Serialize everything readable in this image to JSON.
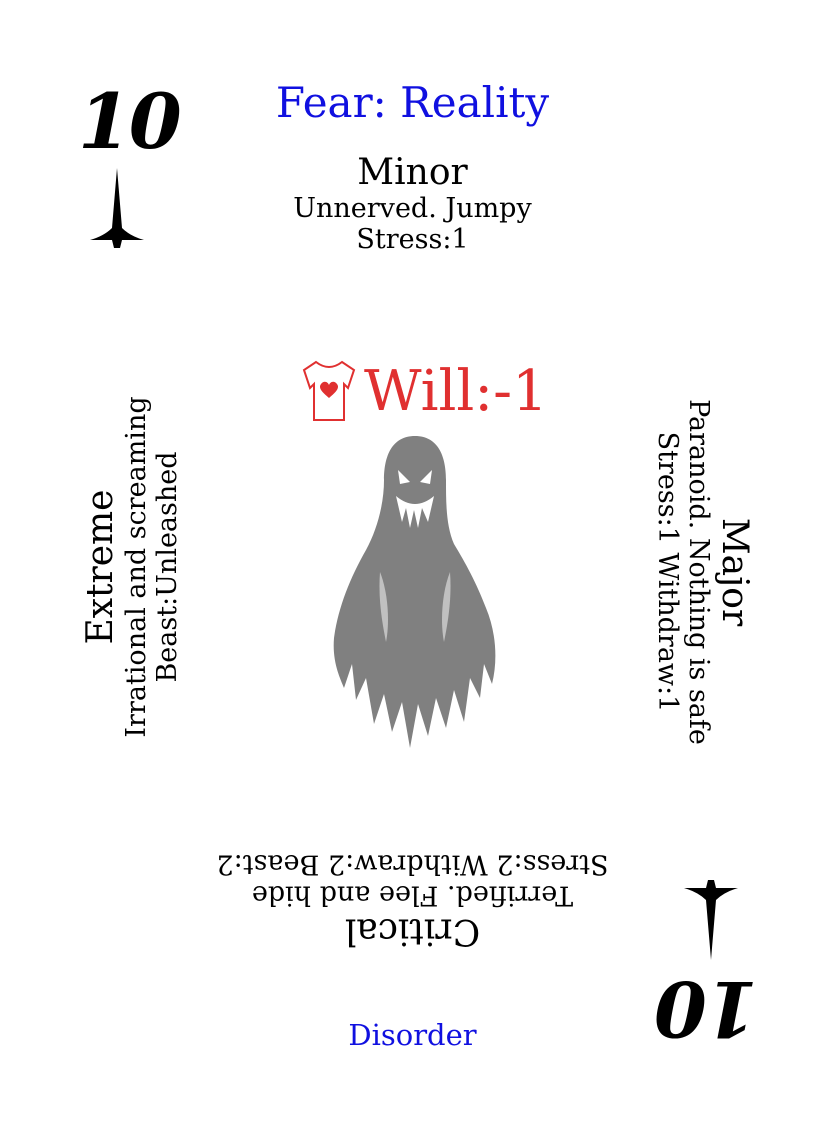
{
  "card": {
    "rank": "10",
    "title": "Fear: Reality",
    "footer": "Disorder",
    "colors": {
      "title": "#1010e0",
      "will": "#e03030",
      "ghost": "#808080"
    }
  },
  "minor": {
    "heading": "Minor",
    "line1": "Unnerved. Jumpy",
    "line2": "Stress:1"
  },
  "major": {
    "heading": "Major",
    "line1": "Paranoid. Nothing is safe",
    "line2": "Stress:1 Withdraw:1"
  },
  "critical": {
    "heading": "Critical",
    "line1": "Terrified. Flee and hide",
    "line2": "Stress:2 Withdraw:2 Beast:2"
  },
  "extreme": {
    "heading": "Extreme",
    "line1": "Irrational and screaming",
    "line2": "Beast:Unleashed"
  },
  "modifier": {
    "icon": "heart-torso-icon",
    "text": "Will:-1"
  },
  "illustration": {
    "icon": "ghost-icon"
  },
  "suit_icon": "spade-spike-icon"
}
